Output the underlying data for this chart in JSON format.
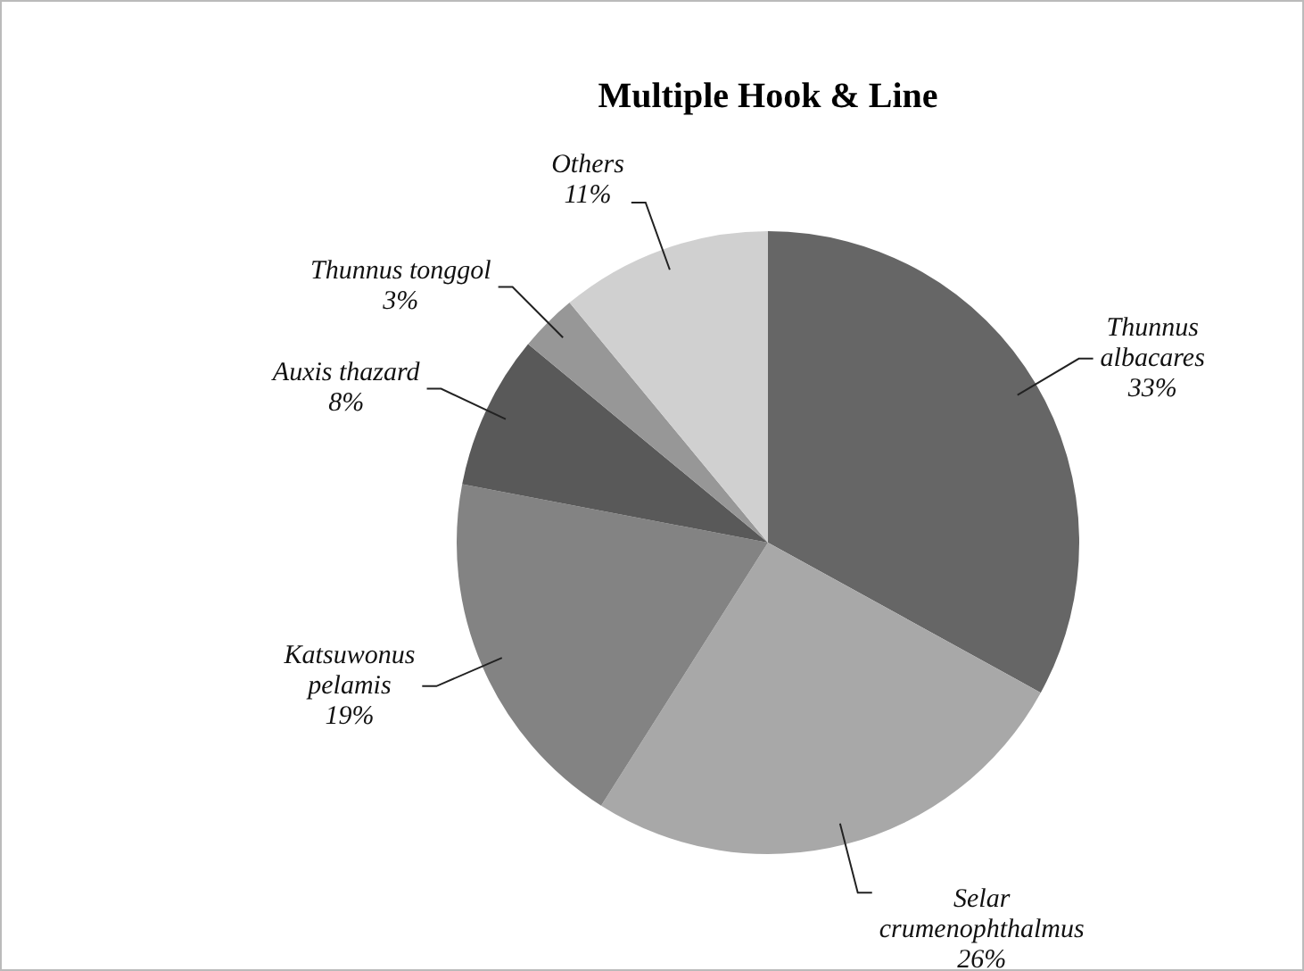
{
  "chart_data": {
    "type": "pie",
    "title": "Multiple Hook & Line",
    "categories": [
      "Thunnus albacares",
      "Selar crumenophthalmus",
      "Katsuwonus pelamis",
      "Auxis thazard",
      "Thunnus tonggol",
      "Others"
    ],
    "values": [
      33,
      26,
      19,
      8,
      3,
      11
    ],
    "value_labels": [
      "33%",
      "26%",
      "19%",
      "8%",
      "3%",
      "11%"
    ],
    "colors": [
      "#666666",
      "#a8a8a8",
      "#838383",
      "#595959",
      "#979797",
      "#d0d0d0"
    ],
    "legend": false
  }
}
